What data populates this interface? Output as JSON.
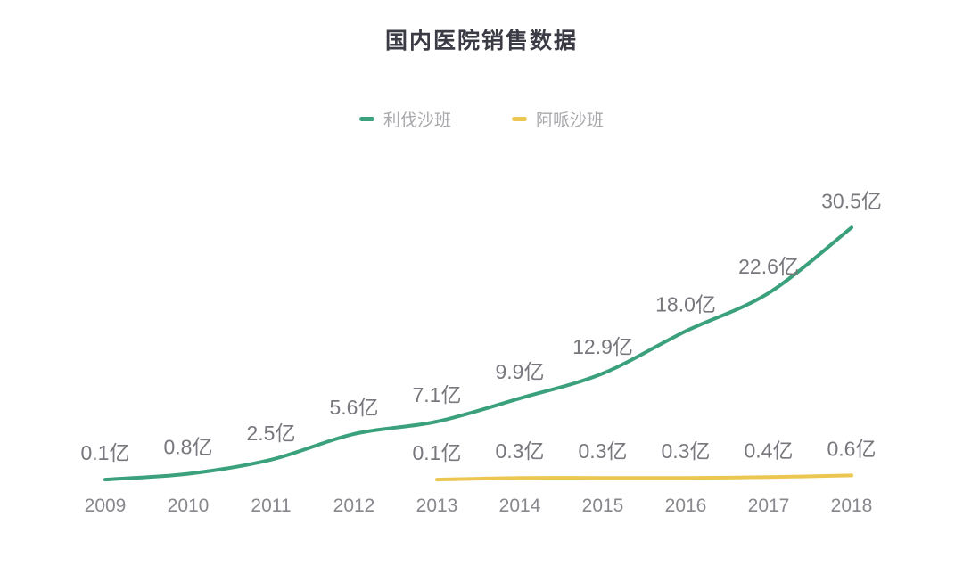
{
  "header": {
    "title": "国内医院销售数据"
  },
  "legend": {
    "items": [
      {
        "label": "利伐沙班",
        "color": "#3aa17c"
      },
      {
        "label": "阿哌沙班",
        "color": "#ebc752"
      }
    ]
  },
  "chart_data": {
    "type": "line",
    "title": "国内医院销售数据",
    "unit": "亿",
    "x_categories": [
      "2009",
      "2010",
      "2011",
      "2012",
      "2013",
      "2014",
      "2015",
      "2016",
      "2017",
      "2018"
    ],
    "ylim": [
      0,
      32
    ],
    "grid": false,
    "legend_position": "top",
    "label_color": "#77777d",
    "axis_label_color": "#87878d",
    "series": [
      {
        "name": "利伐沙班",
        "color": "#3aa17c",
        "start_index": 0,
        "values": [
          0.1,
          0.8,
          2.5,
          5.6,
          7.1,
          9.9,
          12.9,
          18.0,
          22.6,
          30.5
        ],
        "labels": [
          "0.1亿",
          "0.8亿",
          "2.5亿",
          "5.6亿",
          "7.1亿",
          "9.9亿",
          "12.9亿",
          "18.0亿",
          "22.6亿",
          "30.5亿"
        ]
      },
      {
        "name": "阿哌沙班",
        "color": "#ebc752",
        "start_index": 4,
        "values": [
          0.1,
          0.3,
          0.3,
          0.3,
          0.4,
          0.6
        ],
        "labels": [
          "0.1亿",
          "0.3亿",
          "0.3亿",
          "0.3亿",
          "0.4亿",
          "0.6亿"
        ]
      }
    ]
  }
}
